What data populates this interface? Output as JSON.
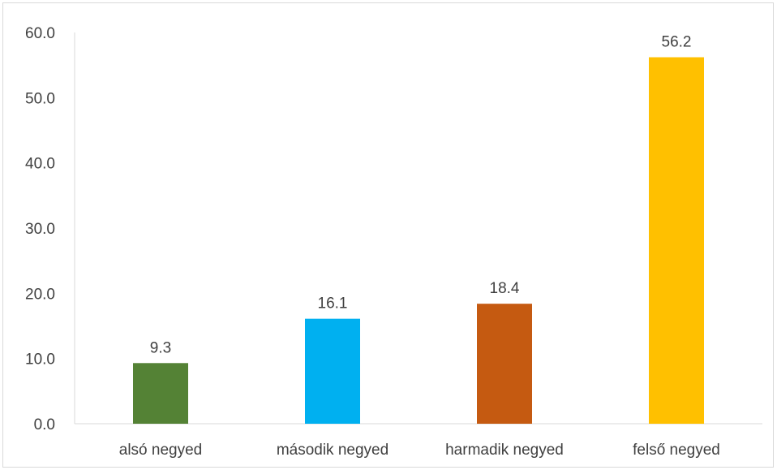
{
  "chart_data": {
    "type": "bar",
    "categories": [
      "alsó negyed",
      "második negyed",
      "harmadik negyed",
      "felső negyed"
    ],
    "values": [
      9.3,
      16.1,
      18.4,
      56.2
    ],
    "value_labels": [
      "9.3",
      "16.1",
      "18.4",
      "56.2"
    ],
    "colors": [
      "#548235",
      "#00b0f0",
      "#c55a11",
      "#ffc000"
    ],
    "ylim": [
      0,
      60
    ],
    "yticks": [
      "0.0",
      "10.0",
      "20.0",
      "30.0",
      "40.0",
      "50.0",
      "60.0"
    ],
    "grid": false,
    "legend": "none"
  }
}
